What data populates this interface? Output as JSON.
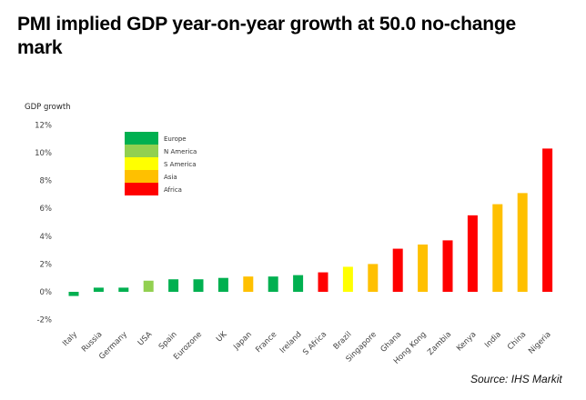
{
  "title": "PMI implied GDP year-on-year growth at 50.0 no-change mark",
  "source": "Source: IHS Markit",
  "chart_data": {
    "type": "bar",
    "title": "PMI implied GDP year-on-year growth at 50.0 no-change mark",
    "xlabel": "",
    "ylabel": "GDP growth",
    "ylim": [
      -2,
      12
    ],
    "yticks": [
      -2,
      0,
      2,
      4,
      6,
      8,
      10,
      12
    ],
    "ytick_labels": [
      "-2%",
      "0%",
      "2%",
      "4%",
      "6%",
      "8%",
      "10%",
      "12%"
    ],
    "grid": false,
    "legend_position": "top-left",
    "legend": [
      {
        "name": "Europe",
        "color": "#00B050"
      },
      {
        "name": "N America",
        "color": "#92D050"
      },
      {
        "name": "S America",
        "color": "#FFFF00"
      },
      {
        "name": "Asia",
        "color": "#FFC000"
      },
      {
        "name": "Africa",
        "color": "#FF0000"
      }
    ],
    "categories": [
      "Italy",
      "Russia",
      "Germany",
      "USA",
      "Spain",
      "Eurozone",
      "UK",
      "Japan",
      "France",
      "Ireland",
      "S Africa",
      "Brazil",
      "Singapore",
      "Ghana",
      "Hong Kong",
      "Zambia",
      "Kenya",
      "India",
      "China",
      "Nigeria"
    ],
    "values": [
      -0.3,
      0.3,
      0.3,
      0.8,
      0.9,
      0.9,
      1.0,
      1.1,
      1.1,
      1.2,
      1.4,
      1.8,
      2.0,
      3.1,
      3.4,
      3.7,
      5.5,
      6.3,
      7.1,
      10.3
    ],
    "regions": [
      "Europe",
      "Europe",
      "Europe",
      "N America",
      "Europe",
      "Europe",
      "Europe",
      "Asia",
      "Europe",
      "Europe",
      "Africa",
      "S America",
      "Asia",
      "Africa",
      "Asia",
      "Africa",
      "Africa",
      "Asia",
      "Asia",
      "Africa"
    ]
  }
}
